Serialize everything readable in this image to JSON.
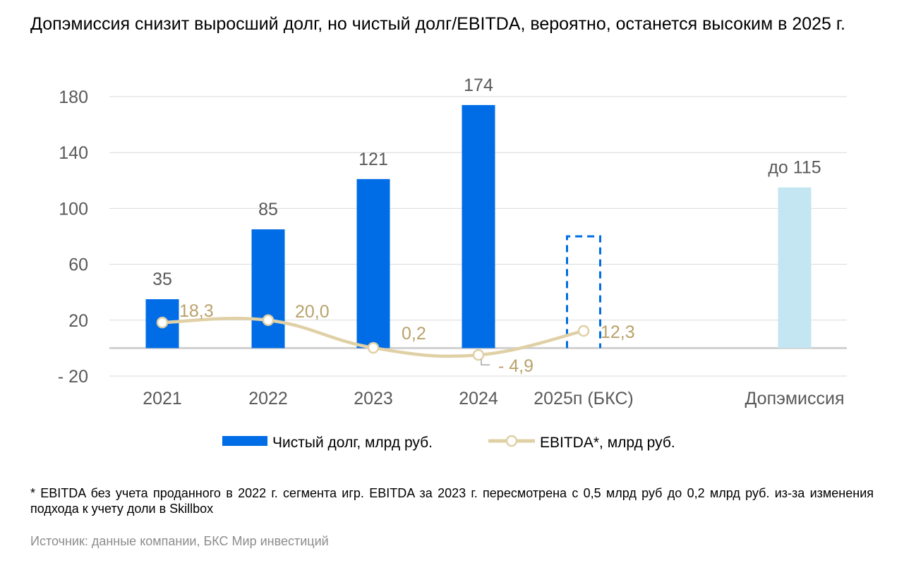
{
  "title": "Допэмиссия снизит выросший долг, но чистый долг/EBITDA, вероятно, останется высоким в 2025 г.",
  "footnote": "* EBITDA без учета проданного в 2022 г. сегмента игр. EBITDA за 2023 г. пересмотрена с 0,5 млрд руб до 0,2 млрд руб. из-за изменения подхода к учету доли в Skillbox",
  "source": "Источник: данные компании, БКС Мир инвестиций",
  "colors": {
    "net_debt": "#006ce6",
    "ebitda": "#e0d0a6",
    "ebitda_label": "#b9a26a",
    "additional_issue": "#c3e6f2",
    "axis_text": "#595959",
    "grid": "#d9d9d9"
  },
  "chart_data": {
    "type": "bar",
    "categories": [
      "2021",
      "2022",
      "2023",
      "2024",
      "2025п (БКС)",
      "Допэмиссия"
    ],
    "y_ticks": [
      "180",
      "140",
      "100",
      "60",
      "20",
      "- 20"
    ],
    "y_tick_values": [
      180,
      140,
      100,
      60,
      20,
      -20
    ],
    "ylim": [
      -20,
      180
    ],
    "grid": true,
    "legend_position": "bottom",
    "series": [
      {
        "name": "Чистый долг, млрд руб.",
        "chart_type": "bar",
        "values": [
          35,
          85,
          121,
          174,
          80,
          115
        ],
        "labels": [
          "35",
          "85",
          "121",
          "174",
          "",
          "до 115"
        ],
        "styles": [
          "solid",
          "solid",
          "solid",
          "solid",
          "dashed-outline",
          "light"
        ]
      },
      {
        "name": "EBITDA*, млрд руб.",
        "chart_type": "line",
        "values": [
          18.3,
          20.0,
          0.2,
          -4.9,
          12.3,
          null
        ],
        "labels": [
          "18,3",
          "20,0",
          "0,2",
          "- 4,9",
          "12,3",
          ""
        ]
      }
    ]
  }
}
